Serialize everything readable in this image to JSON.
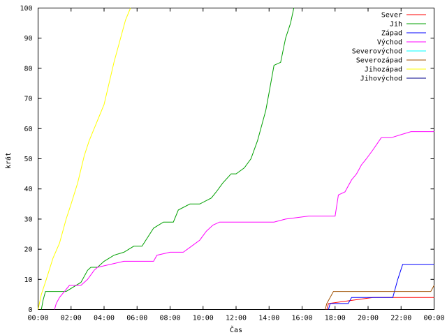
{
  "chart_data": {
    "type": "line",
    "xlabel": "Čas",
    "ylabel": "krát",
    "ylim": [
      0,
      100
    ],
    "xlim": [
      0,
      24
    ],
    "x_unit": "hours",
    "x_ticks": [
      {
        "v": 0,
        "label": "00:00"
      },
      {
        "v": 2,
        "label": "02:00"
      },
      {
        "v": 4,
        "label": "04:00"
      },
      {
        "v": 6,
        "label": "06:00"
      },
      {
        "v": 8,
        "label": "08:00"
      },
      {
        "v": 10,
        "label": "10:00"
      },
      {
        "v": 12,
        "label": "12:00"
      },
      {
        "v": 14,
        "label": "14:00"
      },
      {
        "v": 16,
        "label": "16:00"
      },
      {
        "v": 18,
        "label": "18:00"
      },
      {
        "v": 20,
        "label": "20:00"
      },
      {
        "v": 22,
        "label": "22:00"
      },
      {
        "v": 24,
        "label": "00:00"
      }
    ],
    "y_ticks": [
      0,
      10,
      20,
      30,
      40,
      50,
      60,
      70,
      80,
      90,
      100
    ],
    "legend_position": "top-right",
    "grid": false,
    "series": [
      {
        "name": "Sever",
        "color": "#ff0000",
        "x": [
          17.5,
          17.6,
          20.3,
          24
        ],
        "y": [
          0,
          2,
          4,
          4
        ]
      },
      {
        "name": "Jih",
        "color": "#00a000",
        "x": [
          0.2,
          0.3,
          0.45,
          1.7,
          2.6,
          3.0,
          3.2,
          3.6,
          4.0,
          4.6,
          5.2,
          5.8,
          6.3,
          7.0,
          7.6,
          8.2,
          8.5,
          9.2,
          9.8,
          10.5,
          10.8,
          11.2,
          11.7,
          12.0,
          12.5,
          12.9,
          13.3,
          13.8,
          14.0,
          14.3,
          14.7,
          15.0,
          15.3,
          15.5
        ],
        "y": [
          0,
          3,
          6,
          6,
          9,
          13,
          14,
          14,
          16,
          18,
          19,
          21,
          21,
          27,
          29,
          29,
          33,
          35,
          35,
          37,
          39,
          42,
          45,
          45,
          47,
          50,
          56,
          66,
          72,
          81,
          82,
          90,
          95,
          100
        ]
      },
      {
        "name": "Západ",
        "color": "#0000ff",
        "x": [
          17.6,
          17.7,
          18.8,
          19.0,
          21.5,
          21.8,
          22.1,
          24
        ],
        "y": [
          0,
          2,
          2,
          4,
          4,
          10,
          15,
          15
        ]
      },
      {
        "name": "Východ",
        "color": "#ff00ff",
        "x": [
          1.0,
          1.1,
          1.3,
          1.6,
          1.9,
          2.6,
          3.0,
          3.4,
          3.6,
          5.2,
          7.0,
          7.2,
          8.0,
          8.8,
          9.3,
          9.8,
          10.2,
          10.6,
          11.0,
          14.3,
          15.0,
          16.4,
          18.0,
          18.2,
          18.6,
          19.0,
          19.3,
          19.6,
          19.9,
          20.3,
          20.8,
          21.4,
          22.0,
          22.6,
          24
        ],
        "y": [
          0,
          2,
          4,
          6,
          8,
          8,
          10,
          13,
          14,
          16,
          16,
          18,
          19,
          19,
          21,
          23,
          26,
          28,
          29,
          29,
          30,
          31,
          31,
          38,
          39,
          43,
          45,
          48,
          50,
          53,
          57,
          57,
          58,
          59,
          59
        ]
      },
      {
        "name": "Severovýchod",
        "color": "#00ffff",
        "x": [],
        "y": []
      },
      {
        "name": "Severozápad",
        "color": "#a05000",
        "x": [
          17.4,
          17.5,
          17.9,
          23.8,
          24
        ],
        "y": [
          0,
          2,
          6,
          6,
          8
        ]
      },
      {
        "name": "Jihozápad",
        "color": "#ffff00",
        "x": [
          0.0,
          0.2,
          0.5,
          0.9,
          1.3,
          1.7,
          2.0,
          2.4,
          2.8,
          3.1,
          3.4,
          3.7,
          4.0,
          4.3,
          4.6,
          4.9,
          5.3,
          5.6
        ],
        "y": [
          0,
          5,
          10,
          17,
          22,
          30,
          35,
          42,
          51,
          56,
          60,
          64,
          68,
          75,
          82,
          88,
          96,
          100
        ]
      },
      {
        "name": "Jihovýchod",
        "color": "#00008b",
        "x": [],
        "y": []
      }
    ]
  }
}
